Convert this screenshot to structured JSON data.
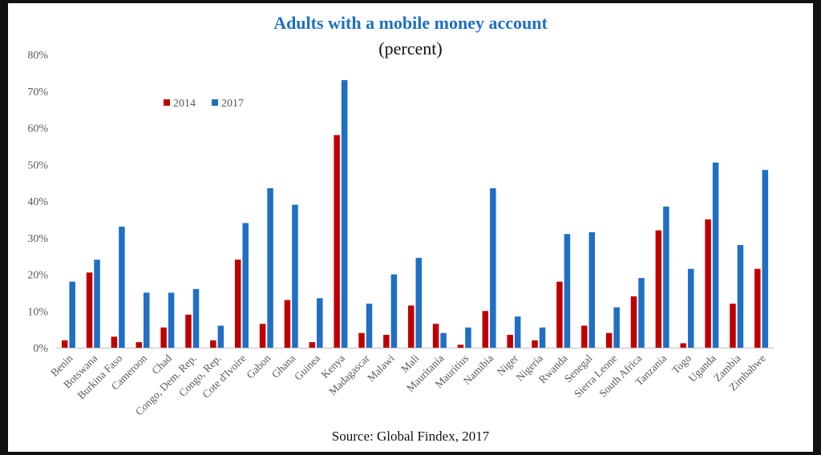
{
  "colors": {
    "2014": "#c00000",
    "2017": "#1f6fc4",
    "title": "#1f6fc4"
  },
  "chart_data": {
    "type": "bar",
    "title": "Adults with a mobile money account",
    "subtitle": "(percent)",
    "source": "Source: Global Findex, 2017",
    "xlabel": "",
    "ylabel": "",
    "ylim": [
      0,
      80
    ],
    "yticks": [
      "0%",
      "10%",
      "20%",
      "30%",
      "40%",
      "50%",
      "60%",
      "70%",
      "80%"
    ],
    "grid": false,
    "legend_position": "top-left inside plot",
    "categories": [
      "Benin",
      "Botswana",
      "Burkina Faso",
      "Cameroon",
      "Chad",
      "Congo, Dem. Rep.",
      "Congo, Rep.",
      "Cote d'Ivoire",
      "Gabon",
      "Ghana",
      "Guinea",
      "Kenya",
      "Madagascar",
      "Malawi",
      "Mali",
      "Mauritania",
      "Mauritius",
      "Namibia",
      "Niger",
      "Nigeria",
      "Rwanda",
      "Senegal",
      "Sierra Leone",
      "South Africa",
      "Tanzania",
      "Togo",
      "Uganda",
      "Zambia",
      "Zimbabwe"
    ],
    "series": [
      {
        "name": "2014",
        "values": [
          2,
          20.5,
          3,
          1.5,
          5.5,
          9,
          2,
          24,
          6.5,
          13,
          1.5,
          58,
          4,
          3.5,
          11.5,
          6.5,
          0.8,
          10,
          3.5,
          2,
          18,
          6,
          4,
          14,
          32,
          1.2,
          35,
          12,
          21.5
        ]
      },
      {
        "name": "2017",
        "values": [
          18,
          24,
          33,
          15,
          15,
          16,
          6,
          34,
          43.5,
          39,
          13.5,
          73,
          12,
          20,
          24.5,
          4,
          5.5,
          43.5,
          8.5,
          5.5,
          31,
          31.5,
          11,
          19,
          38.5,
          21.5,
          50.5,
          28,
          48.5
        ]
      }
    ]
  }
}
